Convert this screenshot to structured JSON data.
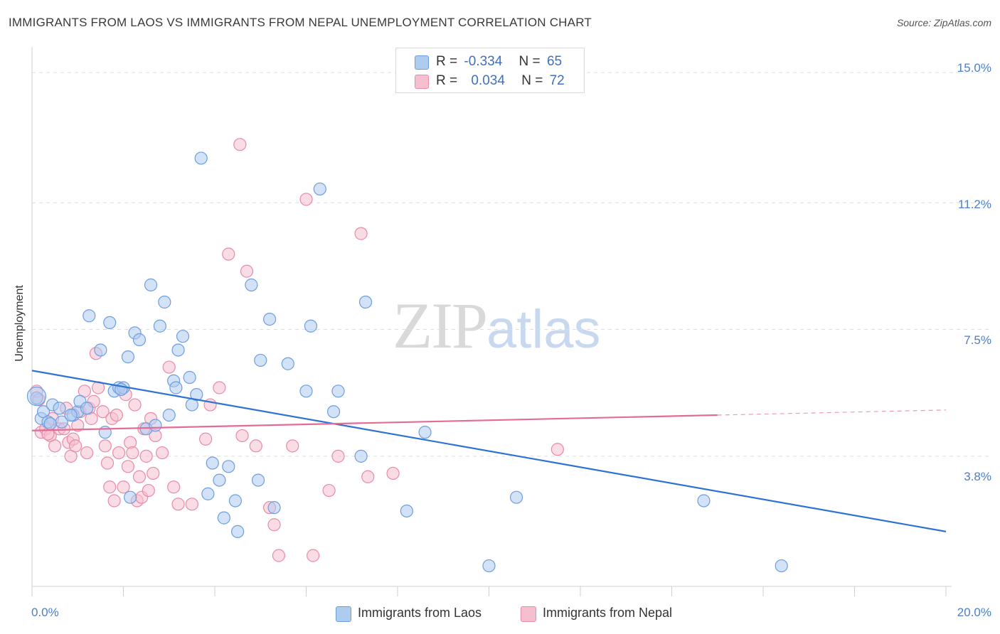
{
  "header": {
    "title": "IMMIGRANTS FROM LAOS VS IMMIGRANTS FROM NEPAL UNEMPLOYMENT CORRELATION CHART",
    "source": "Source: ZipAtlas.com"
  },
  "watermark": {
    "zip": "ZIP",
    "atlas": "atlas"
  },
  "legend": {
    "r_label": "R =",
    "n_label": "N =",
    "laos": {
      "r": "-0.334",
      "n": "65"
    },
    "nepal": {
      "r": "0.034",
      "n": "72"
    }
  },
  "colors": {
    "laos_fill": "#aecbf0",
    "laos_stroke": "#6c9ee0",
    "laos_line": "#2e72d2",
    "nepal_fill": "#f6bfd0",
    "nepal_stroke": "#e88aa8",
    "nepal_line": "#e46b94",
    "tick_label": "#4a7fc8",
    "grid": "#dddddd"
  },
  "chart_data": {
    "type": "scatter",
    "title": "IMMIGRANTS FROM LAOS VS IMMIGRANTS FROM NEPAL UNEMPLOYMENT CORRELATION CHART",
    "xlabel": "",
    "ylabel": "Unemployment",
    "xlim": [
      0,
      20
    ],
    "ylim": [
      0,
      15.5
    ],
    "x_tick_labels": [
      "0.0%",
      "20.0%"
    ],
    "y_ticks": [
      3.8,
      7.5,
      11.2,
      15.0
    ],
    "y_tick_labels": [
      "3.8%",
      "7.5%",
      "11.2%",
      "15.0%"
    ],
    "grid": true,
    "legend_position": "top-center",
    "series": [
      {
        "name": "Immigrants from Laos",
        "key": "laos",
        "r": -0.334,
        "n": 65,
        "trend": {
          "x": [
            0,
            20
          ],
          "y": [
            6.3,
            1.6
          ]
        },
        "points": [
          [
            0.1,
            5.5
          ],
          [
            0.2,
            4.9
          ],
          [
            0.25,
            5.1
          ],
          [
            0.35,
            4.8
          ],
          [
            0.45,
            5.3
          ],
          [
            0.6,
            5.2
          ],
          [
            0.65,
            4.8
          ],
          [
            0.9,
            5.0
          ],
          [
            1.0,
            5.1
          ],
          [
            1.05,
            5.4
          ],
          [
            1.2,
            5.2
          ],
          [
            1.25,
            7.9
          ],
          [
            1.5,
            6.9
          ],
          [
            1.6,
            4.5
          ],
          [
            1.7,
            7.7
          ],
          [
            1.8,
            5.7
          ],
          [
            1.9,
            5.8
          ],
          [
            2.0,
            5.8
          ],
          [
            2.1,
            6.7
          ],
          [
            2.15,
            2.6
          ],
          [
            2.25,
            7.4
          ],
          [
            2.35,
            7.2
          ],
          [
            2.5,
            4.6
          ],
          [
            2.6,
            8.8
          ],
          [
            2.7,
            4.7
          ],
          [
            2.8,
            7.6
          ],
          [
            2.9,
            8.3
          ],
          [
            3.0,
            5.0
          ],
          [
            3.1,
            6.0
          ],
          [
            3.15,
            5.8
          ],
          [
            3.2,
            6.9
          ],
          [
            3.3,
            7.3
          ],
          [
            3.45,
            6.1
          ],
          [
            3.5,
            5.3
          ],
          [
            3.6,
            5.6
          ],
          [
            3.7,
            12.5
          ],
          [
            3.85,
            2.7
          ],
          [
            3.95,
            3.6
          ],
          [
            4.1,
            3.1
          ],
          [
            4.2,
            2.0
          ],
          [
            4.3,
            3.5
          ],
          [
            4.45,
            2.5
          ],
          [
            4.5,
            1.6
          ],
          [
            4.8,
            8.8
          ],
          [
            4.95,
            3.1
          ],
          [
            5.0,
            6.6
          ],
          [
            5.2,
            7.8
          ],
          [
            5.3,
            2.3
          ],
          [
            5.6,
            6.5
          ],
          [
            6.0,
            5.7
          ],
          [
            6.1,
            7.6
          ],
          [
            6.3,
            11.6
          ],
          [
            6.6,
            5.1
          ],
          [
            6.7,
            5.7
          ],
          [
            7.2,
            3.8
          ],
          [
            7.3,
            8.3
          ],
          [
            8.2,
            2.2
          ],
          [
            8.6,
            4.5
          ],
          [
            10.0,
            0.6
          ],
          [
            10.6,
            2.6
          ],
          [
            14.7,
            2.5
          ],
          [
            16.4,
            0.6
          ],
          [
            0.4,
            4.75
          ],
          [
            0.85,
            5.0
          ],
          [
            1.95,
            5.75
          ]
        ]
      },
      {
        "name": "Immigrants from Nepal",
        "key": "nepal",
        "r": 0.034,
        "n": 72,
        "trend": {
          "x": [
            0,
            15
          ],
          "y": [
            4.55,
            5.0
          ]
        },
        "trend_dashed": {
          "x": [
            15,
            20
          ],
          "y": [
            5.0,
            5.15
          ]
        },
        "points": [
          [
            0.1,
            5.7
          ],
          [
            0.2,
            4.5
          ],
          [
            0.3,
            4.6
          ],
          [
            0.4,
            4.4
          ],
          [
            0.45,
            4.9
          ],
          [
            0.5,
            4.1
          ],
          [
            0.6,
            4.6
          ],
          [
            0.7,
            4.6
          ],
          [
            0.75,
            5.2
          ],
          [
            0.8,
            4.2
          ],
          [
            0.85,
            3.8
          ],
          [
            0.9,
            4.3
          ],
          [
            0.95,
            4.1
          ],
          [
            1.05,
            5.1
          ],
          [
            1.15,
            5.7
          ],
          [
            1.2,
            3.9
          ],
          [
            1.25,
            5.2
          ],
          [
            1.3,
            4.9
          ],
          [
            1.35,
            5.4
          ],
          [
            1.4,
            6.8
          ],
          [
            1.45,
            5.8
          ],
          [
            1.55,
            5.1
          ],
          [
            1.6,
            4.1
          ],
          [
            1.65,
            3.6
          ],
          [
            1.7,
            2.9
          ],
          [
            1.75,
            4.9
          ],
          [
            1.8,
            2.5
          ],
          [
            1.85,
            5.0
          ],
          [
            1.9,
            3.9
          ],
          [
            2.0,
            2.9
          ],
          [
            2.05,
            5.6
          ],
          [
            2.1,
            3.5
          ],
          [
            2.15,
            4.2
          ],
          [
            2.2,
            3.9
          ],
          [
            2.25,
            5.3
          ],
          [
            2.3,
            2.5
          ],
          [
            2.35,
            3.2
          ],
          [
            2.4,
            2.6
          ],
          [
            2.5,
            3.8
          ],
          [
            2.55,
            2.8
          ],
          [
            2.6,
            4.9
          ],
          [
            2.65,
            3.3
          ],
          [
            2.7,
            4.4
          ],
          [
            2.85,
            3.9
          ],
          [
            3.0,
            6.4
          ],
          [
            3.1,
            2.9
          ],
          [
            3.2,
            2.4
          ],
          [
            3.5,
            2.4
          ],
          [
            3.8,
            4.3
          ],
          [
            3.9,
            5.3
          ],
          [
            4.1,
            5.8
          ],
          [
            4.3,
            9.7
          ],
          [
            4.55,
            12.9
          ],
          [
            4.6,
            4.4
          ],
          [
            4.7,
            9.2
          ],
          [
            4.9,
            4.1
          ],
          [
            5.2,
            2.3
          ],
          [
            5.3,
            1.8
          ],
          [
            5.4,
            0.9
          ],
          [
            5.7,
            4.1
          ],
          [
            6.0,
            11.3
          ],
          [
            6.15,
            0.9
          ],
          [
            6.5,
            2.8
          ],
          [
            6.7,
            3.8
          ],
          [
            7.2,
            10.3
          ],
          [
            7.35,
            3.2
          ],
          [
            7.9,
            3.3
          ],
          [
            11.5,
            4.0
          ],
          [
            0.15,
            5.45
          ],
          [
            0.35,
            4.45
          ],
          [
            1.0,
            4.7
          ],
          [
            2.45,
            4.6
          ]
        ]
      }
    ]
  },
  "bottom_legend": {
    "laos_label": "Immigrants from Laos",
    "nepal_label": "Immigrants from Nepal"
  },
  "axis": {
    "x_left": "0.0%",
    "x_right": "20.0%",
    "y_label": "Unemployment",
    "y_ticks": {
      "t150": "15.0%",
      "t112": "11.2%",
      "t75": "7.5%",
      "t38": "3.8%"
    }
  }
}
